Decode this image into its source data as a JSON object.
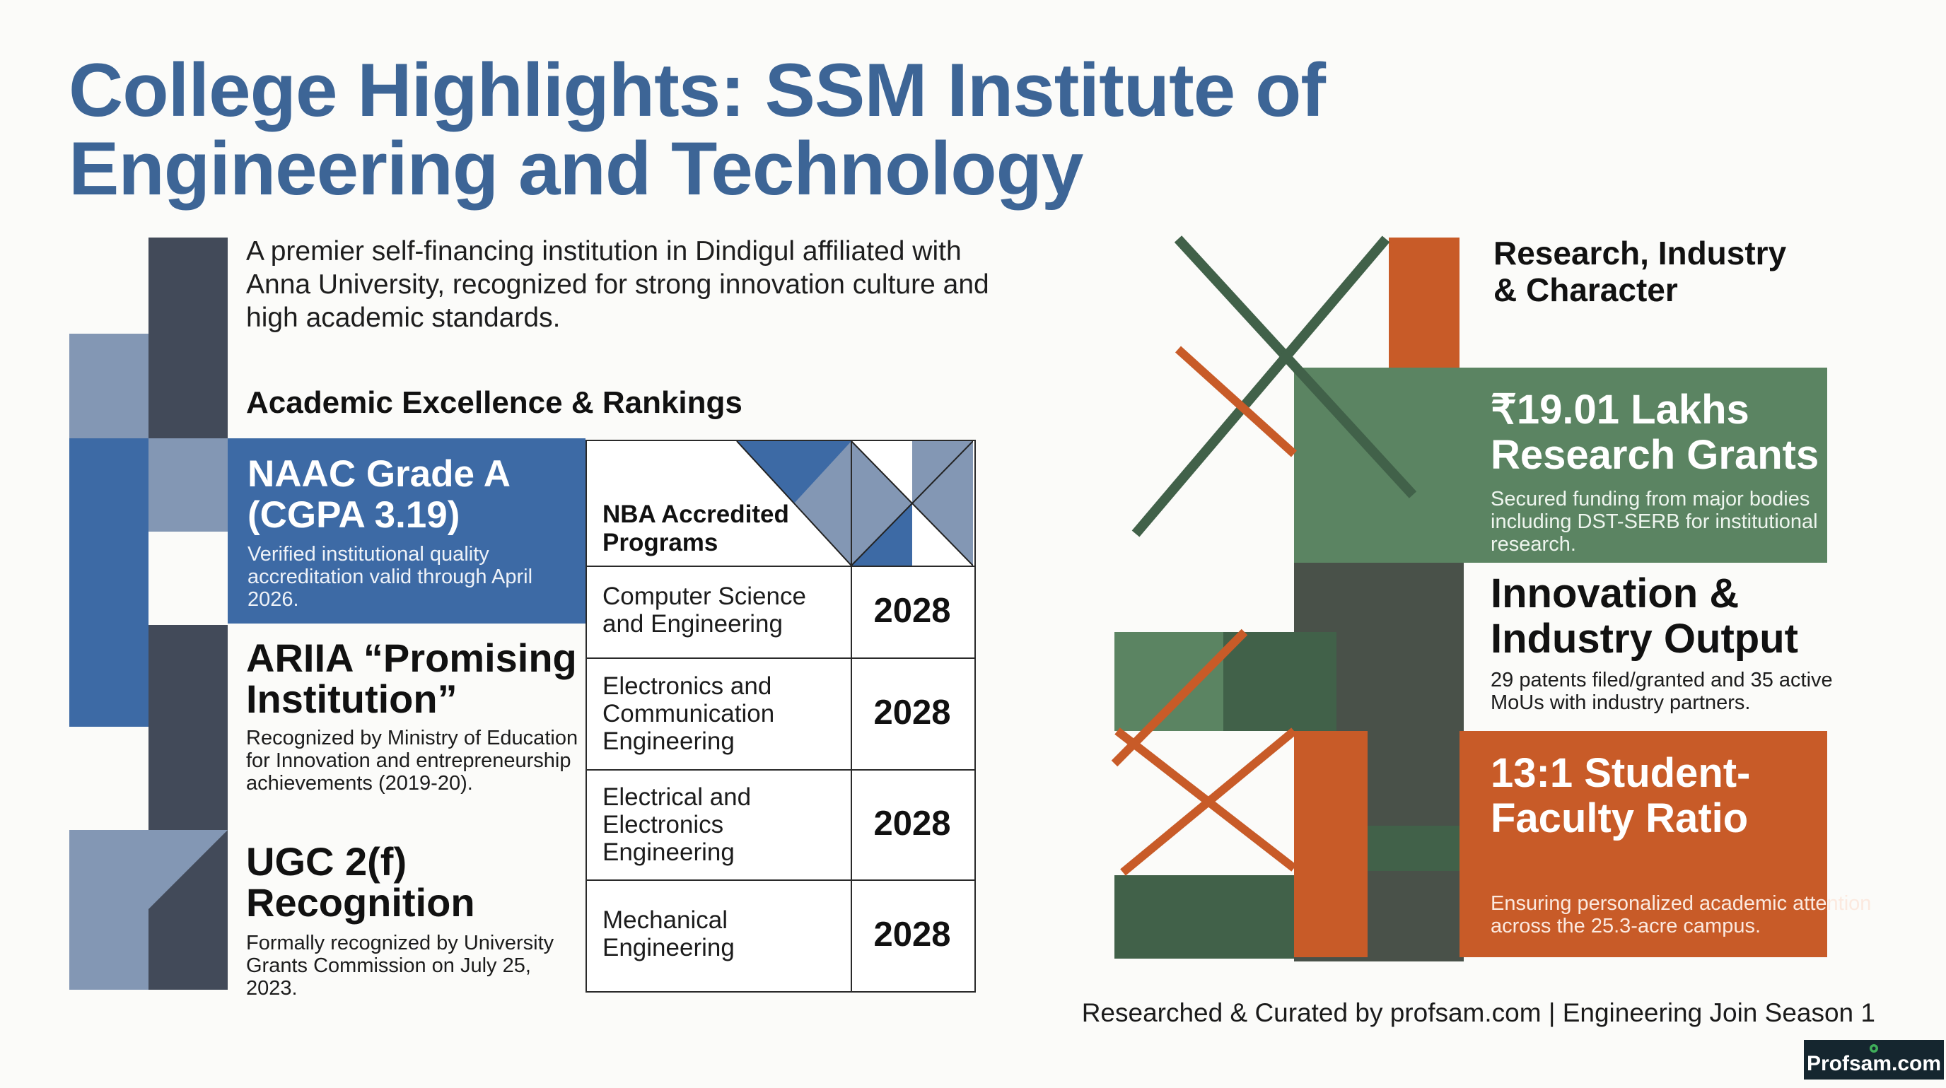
{
  "page": {
    "title_line1": "College Highlights: SSM Institute of",
    "title_line2": "Engineering and Technology",
    "intro": "A premier self-financing institution in Dindigul affiliated with Anna University, recognized for strong innovation culture and high academic standards.",
    "footer": "Researched & Curated by profsam.com | Engineering Join Season 1",
    "logo_text": "Profsam.com"
  },
  "academic": {
    "heading": "Academic Excellence & Rankings",
    "naac": {
      "title": "NAAC Grade A (CGPA 3.19)",
      "description": "Verified institutional quality accreditation valid through April 2026."
    },
    "ariia": {
      "title": "ARIIA “Promising Institution”",
      "description": "Recognized by Ministry of Education for Innovation and entrepreneurship achievements (2019-20)."
    },
    "ugc": {
      "title": "UGC 2(f) Recognition",
      "description": "Formally recognized by University Grants Commission on July 25, 2023."
    }
  },
  "nba": {
    "header": "NBA Accredited Programs",
    "programs": [
      {
        "name": "Computer Science and Engineering",
        "year": "2028"
      },
      {
        "name": "Electronics and Communication Engineering",
        "year": "2028"
      },
      {
        "name": "Electrical and Electronics Engineering",
        "year": "2028"
      },
      {
        "name": "Mechanical Engineering",
        "year": "2028"
      }
    ]
  },
  "research": {
    "heading": "Research, Industry & Character",
    "grants": {
      "title": "₹19.01 Lakhs Research Grants",
      "description": "Secured funding from major bodies including DST-SERB for institutional research."
    },
    "innovation": {
      "title": "Innovation & Industry Output",
      "description": "29 patents filed/granted and 35 active MoUs with industry partners."
    },
    "ratio": {
      "title": "13:1 Student-Faculty Ratio",
      "description": "Ensuring personalized academic attention across the 25.3-acre campus."
    }
  },
  "colors": {
    "title_blue": "#3d6596",
    "blue": "#3d6aa5",
    "slate": "#424a59",
    "light_blue": "#8397b4",
    "green": "#5b8462",
    "dark_green": "#416149",
    "orange": "#c85b28",
    "charcoal": "#495149"
  }
}
